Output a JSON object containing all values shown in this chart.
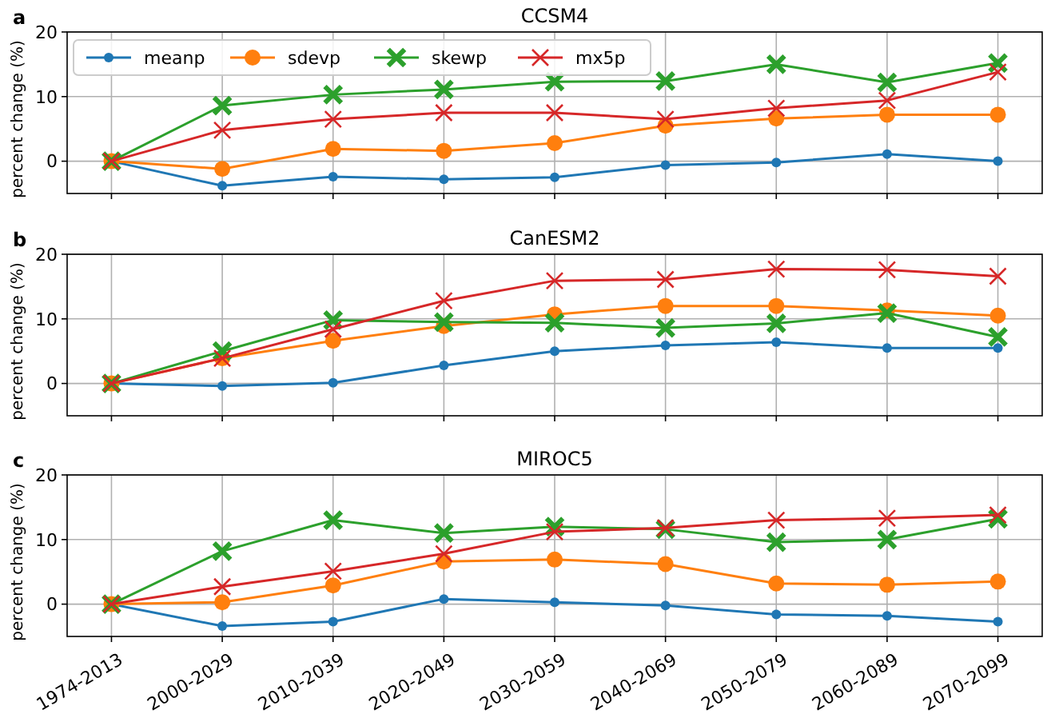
{
  "chart_data": [
    {
      "type": "line",
      "title": "CCSM4",
      "ylabel": "percent change (%)",
      "annotations": [
        "a"
      ],
      "categories": [
        null,
        null,
        null,
        null,
        null,
        null,
        null,
        null,
        null
      ],
      "ylim": [
        -5,
        20
      ],
      "yticks": [
        0,
        10,
        20
      ],
      "grid": true,
      "legend": "top left",
      "tick_labels": "y",
      "line_style": "solid",
      "series": [
        {
          "name": "meanp",
          "color": "#1f77b4",
          "marker": "circle",
          "values": [
            0,
            -3.8,
            -2.4,
            -2.8,
            -2.5,
            -0.6,
            -0.2,
            1.1,
            0
          ]
        },
        {
          "name": "sdevp",
          "color": "#ff7f0e",
          "marker": "circle",
          "values": [
            0,
            -1.2,
            1.9,
            1.6,
            2.8,
            5.5,
            6.6,
            7.2,
            7.2
          ]
        },
        {
          "name": "skewp",
          "color": "#2ca02c",
          "marker": "cross",
          "values": [
            0,
            8.6,
            10.3,
            11.1,
            12.3,
            12.4,
            15.0,
            12.2,
            15.2
          ]
        },
        {
          "name": "mx5p",
          "color": "#d62728",
          "marker": "x",
          "values": [
            0,
            4.8,
            6.5,
            7.5,
            7.5,
            6.5,
            8.2,
            9.4,
            13.8
          ]
        }
      ]
    },
    {
      "type": "line",
      "title": "CanESM2",
      "ylabel": "percent change (%)",
      "annotations": [
        "b"
      ],
      "categories": [
        null,
        null,
        null,
        null,
        null,
        null,
        null,
        null,
        null
      ],
      "ylim": [
        -5,
        20
      ],
      "yticks": [
        0,
        10,
        20
      ],
      "grid": true,
      "tick_labels": "y",
      "line_style": "solid",
      "series": [
        {
          "color": "#1f77b4",
          "marker": "circle",
          "values": [
            0,
            -0.4,
            0.1,
            2.8,
            5.0,
            5.9,
            6.4,
            5.5,
            5.5
          ]
        },
        {
          "color": "#ff7f0e",
          "marker": "circle",
          "values": [
            0,
            3.9,
            6.6,
            8.9,
            10.7,
            12.0,
            12.0,
            11.3,
            10.5
          ]
        },
        {
          "color": "#2ca02c",
          "marker": "cross",
          "values": [
            0,
            5.0,
            9.8,
            9.5,
            9.4,
            8.6,
            9.3,
            10.9,
            7.2
          ]
        },
        {
          "color": "#d62728",
          "marker": "x",
          "values": [
            0,
            3.9,
            8.4,
            12.8,
            15.9,
            16.1,
            17.7,
            17.6,
            16.6
          ]
        }
      ]
    },
    {
      "type": "line",
      "title": "MIROC5",
      "ylabel": "percent change (%)",
      "annotations": [
        "c"
      ],
      "categories": [
        "1974-2013",
        "2000-2029",
        "2010-2039",
        "2020-2049",
        "2030-2059",
        "2040-2069",
        "2050-2079",
        "2060-2089",
        "2070-2099"
      ],
      "ylim": [
        -5,
        20
      ],
      "yticks": [
        0,
        10,
        20
      ],
      "grid": true,
      "line_style": "solid",
      "series": [
        {
          "color": "#1f77b4",
          "marker": "circle",
          "values": [
            0,
            -3.4,
            -2.7,
            0.8,
            0.3,
            -0.2,
            -1.6,
            -1.8,
            -2.7
          ]
        },
        {
          "color": "#ff7f0e",
          "marker": "circle",
          "values": [
            0,
            0.3,
            2.9,
            6.6,
            6.9,
            6.2,
            3.2,
            3.0,
            3.5
          ]
        },
        {
          "color": "#2ca02c",
          "marker": "cross",
          "values": [
            0,
            8.2,
            13.0,
            11.0,
            12.0,
            11.6,
            9.6,
            10.0,
            13.2
          ]
        },
        {
          "color": "#d62728",
          "marker": "x",
          "values": [
            0,
            2.7,
            5.1,
            7.8,
            11.2,
            11.8,
            13.0,
            13.3,
            13.8
          ]
        }
      ]
    }
  ]
}
